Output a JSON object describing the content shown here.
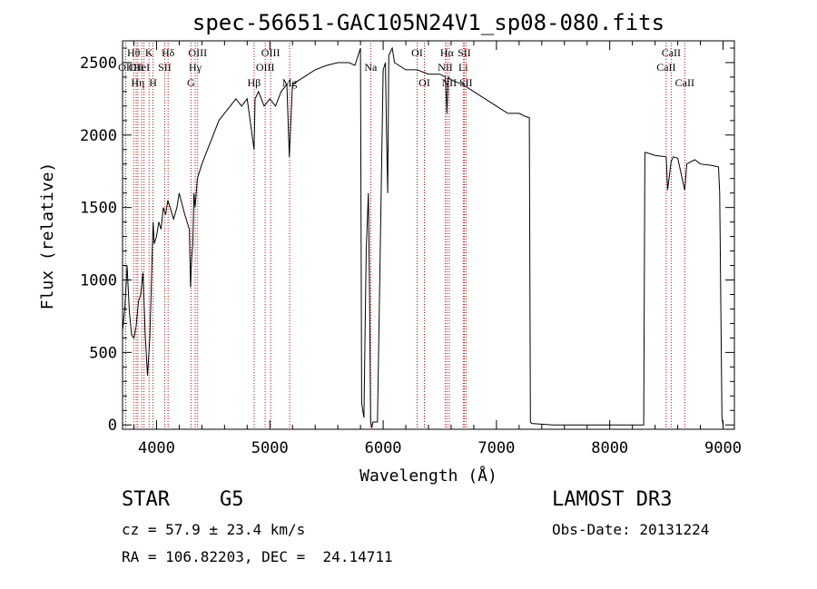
{
  "chart_data": {
    "type": "line",
    "title": "spec-56651-GAC105N24V1_sp08-080.fits",
    "xlabel": "Wavelength (Å)",
    "ylabel": "Flux (relative)",
    "xlim": [
      3700,
      9100
    ],
    "ylim": [
      -30,
      2650
    ],
    "xticks": [
      4000,
      5000,
      6000,
      7000,
      8000,
      9000
    ],
    "yticks": [
      0,
      500,
      1000,
      1500,
      2000,
      2500
    ],
    "grid": false,
    "series": [
      {
        "x": [
          3700,
          3720,
          3740,
          3760,
          3780,
          3800,
          3820,
          3840,
          3860,
          3880,
          3900,
          3920,
          3940,
          3950,
          3960,
          3970,
          3980,
          4000,
          4020,
          4040,
          4060,
          4080,
          4100,
          4120,
          4150,
          4180,
          4200,
          4250,
          4290,
          4300,
          4310,
          4320,
          4330,
          4340,
          4360,
          4400,
          4450,
          4500,
          4550,
          4600,
          4650,
          4700,
          4750,
          4800,
          4861,
          4870,
          4900,
          4950,
          5000,
          5050,
          5100,
          5150,
          5172,
          5200,
          5300,
          5400,
          5500,
          5600,
          5700,
          5750,
          5780,
          5800,
          5810,
          5830,
          5850,
          5870,
          5880,
          5890,
          5900,
          5910,
          5950,
          6000,
          6020,
          6030,
          6040,
          6050,
          6080,
          6100,
          6200,
          6300,
          6400,
          6500,
          6550,
          6563,
          6575,
          6600,
          6700,
          6800,
          6900,
          7000,
          7100,
          7200,
          7250,
          7290,
          7300,
          7310,
          7500,
          8000,
          8300,
          8310,
          8320,
          8400,
          8498,
          8510,
          8542,
          8560,
          8600,
          8662,
          8680,
          8750,
          8800,
          8900,
          8960,
          8970,
          8990,
          9000
        ],
        "y": [
          650,
          800,
          1100,
          780,
          620,
          600,
          680,
          850,
          900,
          1050,
          620,
          340,
          600,
          850,
          1150,
          1400,
          1250,
          1300,
          1400,
          1350,
          1500,
          1450,
          1550,
          1500,
          1420,
          1500,
          1600,
          1450,
          1350,
          950,
          1150,
          1250,
          1600,
          1500,
          1700,
          1800,
          1900,
          2000,
          2100,
          2150,
          2200,
          2250,
          2200,
          2250,
          1900,
          2250,
          2300,
          2200,
          2250,
          2200,
          2300,
          2350,
          1850,
          2350,
          2400,
          2450,
          2480,
          2500,
          2500,
          2480,
          2550,
          2600,
          150,
          50,
          1200,
          1600,
          900,
          20,
          -20,
          20,
          20,
          2450,
          2500,
          2000,
          1600,
          2550,
          2600,
          2500,
          2450,
          2450,
          2420,
          2420,
          2400,
          2150,
          2400,
          2380,
          2350,
          2300,
          2250,
          2200,
          2150,
          2150,
          2130,
          2120,
          20,
          10,
          0,
          0,
          0,
          1880,
          1880,
          1860,
          1850,
          1620,
          1820,
          1850,
          1840,
          1620,
          1800,
          1830,
          1800,
          1790,
          1780,
          1600,
          50,
          0
        ]
      }
    ],
    "lines": [
      {
        "x": 3728,
        "label": "OII",
        "row": 2
      },
      {
        "x": 3798,
        "label": "Hθ",
        "row": 1
      },
      {
        "x": 3820,
        "label": "OII",
        "row": 2
      },
      {
        "x": 3835,
        "label": "Hη",
        "row": 3
      },
      {
        "x": 3869,
        "label": "HeI",
        "row": 2
      },
      {
        "x": 3889,
        "label": "",
        "row": 0
      },
      {
        "x": 3934,
        "label": "K",
        "row": 1
      },
      {
        "x": 3969,
        "label": "H",
        "row": 3
      },
      {
        "x": 4072,
        "label": "SII",
        "row": 2
      },
      {
        "x": 4102,
        "label": "Hδ",
        "row": 1
      },
      {
        "x": 4304,
        "label": "G",
        "row": 3
      },
      {
        "x": 4341,
        "label": "Hγ",
        "row": 2
      },
      {
        "x": 4363,
        "label": "OIII",
        "row": 1
      },
      {
        "x": 4861,
        "label": "Hβ",
        "row": 3
      },
      {
        "x": 4959,
        "label": "OIII",
        "row": 2
      },
      {
        "x": 5007,
        "label": "OIII",
        "row": 1
      },
      {
        "x": 5175,
        "label": "Mg",
        "row": 3
      },
      {
        "x": 5890,
        "label": "Na",
        "row": 2
      },
      {
        "x": 6300,
        "label": "OI",
        "row": 1
      },
      {
        "x": 6364,
        "label": "OI",
        "row": 3
      },
      {
        "x": 6548,
        "label": "NII",
        "row": 2
      },
      {
        "x": 6563,
        "label": "Hα",
        "row": 1
      },
      {
        "x": 6583,
        "label": "NII",
        "row": 3
      },
      {
        "x": 6707,
        "label": "Li",
        "row": 2
      },
      {
        "x": 6716,
        "label": "SII",
        "row": 1
      },
      {
        "x": 6731,
        "label": "SII",
        "row": 3
      },
      {
        "x": 8498,
        "label": "CaII",
        "row": 2
      },
      {
        "x": 8542,
        "label": "CaII",
        "row": 1
      },
      {
        "x": 8662,
        "label": "CaII",
        "row": 3
      }
    ]
  },
  "info": {
    "class": "STAR",
    "subclass": "G5",
    "survey": "LAMOST DR3",
    "cz": "cz = 57.9 ± 23.4 km/s",
    "obs_date": "Obs-Date: 20131224",
    "coords": "RA = 106.82203, DEC =  24.14711"
  }
}
